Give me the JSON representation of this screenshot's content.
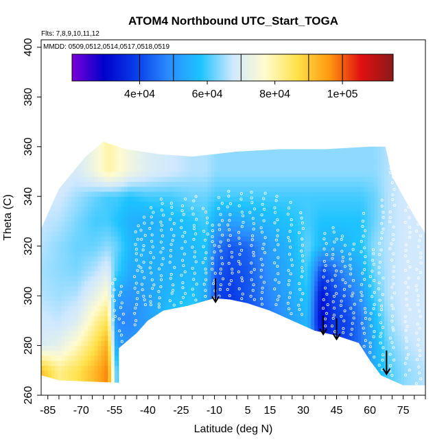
{
  "chart_data": {
    "type": "heatmap",
    "title": "ATOM4 Northbound UTC_Start_TOGA",
    "annotations": [
      "Flts: 7,8,9,10,11,12",
      "MMDD: 0509,0512,0514,0517,0518,0519"
    ],
    "xlabel": "Latitude (deg N)",
    "ylabel": "Theta (C)",
    "xlim": [
      -88,
      85
    ],
    "ylim": [
      260,
      403
    ],
    "x_ticks": [
      -85,
      -70,
      -55,
      -40,
      -25,
      -10,
      5,
      15,
      30,
      45,
      60,
      75
    ],
    "x_tick_labels": [
      "-85",
      "-70",
      "-55",
      "-40",
      "-25",
      "-10",
      "5",
      "15",
      "30",
      "45",
      "60",
      "75"
    ],
    "y_ticks": [
      260,
      280,
      300,
      320,
      340,
      360,
      380,
      400
    ],
    "y_tick_labels": [
      "260",
      "280",
      "300",
      "320",
      "340",
      "360",
      "380",
      "400"
    ],
    "colorbar": {
      "range": [
        20000,
        115000
      ],
      "ticks": [
        40000,
        60000,
        80000,
        100000
      ],
      "tick_labels": [
        "4e+04",
        "6e+04",
        "8e+04",
        "1e+05"
      ],
      "break_lines": [
        40000,
        50000,
        70000,
        90000,
        100000
      ],
      "stops": [
        "#7b00d8",
        "#0000cc",
        "#0a3ee8",
        "#2b8bff",
        "#1ec3ff",
        "#cfe8ff",
        "#fffbd0",
        "#ffe24a",
        "#ff9a10",
        "#e01010",
        "#8a1a1a"
      ]
    },
    "field_bounds": {
      "top": [
        [
          -88,
          327
        ],
        [
          -80,
          343
        ],
        [
          -68,
          356
        ],
        [
          -60,
          362
        ],
        [
          -50,
          359
        ],
        [
          -35,
          357
        ],
        [
          -20,
          356
        ],
        [
          0,
          358
        ],
        [
          20,
          359
        ],
        [
          40,
          359
        ],
        [
          60,
          360
        ],
        [
          67,
          360
        ],
        [
          70,
          348
        ],
        [
          80,
          332
        ],
        [
          85,
          325
        ]
      ],
      "bottom": [
        [
          -88,
          268
        ],
        [
          -80,
          266
        ],
        [
          -53,
          265
        ],
        [
          -53,
          279
        ],
        [
          -45,
          285
        ],
        [
          -40,
          290
        ],
        [
          -33,
          294
        ],
        [
          -22,
          296
        ],
        [
          -10,
          299
        ],
        [
          -3,
          298.5
        ],
        [
          5,
          297
        ],
        [
          15,
          294
        ],
        [
          25,
          290
        ],
        [
          35,
          286
        ],
        [
          45,
          284
        ],
        [
          55,
          281
        ],
        [
          60,
          274
        ],
        [
          65,
          268
        ],
        [
          70,
          266
        ],
        [
          75,
          264
        ],
        [
          85,
          264
        ]
      ]
    },
    "columns": [
      {
        "lat": -87,
        "values": [
          90000,
          70000,
          68000,
          66000,
          65000,
          66000,
          67000,
          68000,
          69000
        ]
      },
      {
        "lat": -80,
        "values": [
          82000,
          72000,
          67000,
          65000,
          64000,
          64000,
          66000,
          68000,
          70000
        ]
      },
      {
        "lat": -72,
        "values": [
          86000,
          78000,
          70000,
          66000,
          63000,
          62000,
          63000,
          65000,
          69000
        ]
      },
      {
        "lat": -64,
        "values": [
          92000,
          86000,
          80000,
          72000,
          66000,
          62000,
          60000,
          62000,
          74000
        ]
      },
      {
        "lat": -58,
        "values": [
          98000,
          94000,
          86000,
          78000,
          70000,
          64000,
          60000,
          60000,
          80000
        ]
      },
      {
        "lat": -54,
        "values": [
          60000,
          52000,
          48000,
          52000,
          60000,
          62000,
          58000,
          60000,
          78000
        ]
      },
      {
        "lat": -48,
        "values": [
          56000,
          50000,
          48000,
          50000,
          54000,
          56000,
          55000,
          58000,
          74000
        ]
      },
      {
        "lat": -40,
        "values": [
          58000,
          54000,
          52000,
          52000,
          54000,
          55000,
          54000,
          60000,
          70000
        ]
      },
      {
        "lat": -30,
        "values": [
          62000,
          60000,
          58000,
          56000,
          55000,
          55000,
          56000,
          60000,
          68000
        ]
      },
      {
        "lat": -20,
        "values": [
          64000,
          62000,
          60000,
          58000,
          56000,
          56000,
          58000,
          62000,
          66000
        ]
      },
      {
        "lat": -14,
        "values": [
          58000,
          56000,
          54000,
          54000,
          56000,
          58000,
          60000,
          62000,
          66000
        ]
      },
      {
        "lat": -9,
        "values": [
          40000,
          38000,
          40000,
          40000,
          42000,
          46000,
          54000,
          60000,
          64000
        ]
      },
      {
        "lat": -3,
        "values": [
          40000,
          38000,
          36000,
          38000,
          40000,
          42000,
          52000,
          60000,
          64000
        ]
      },
      {
        "lat": 5,
        "values": [
          42000,
          40000,
          40000,
          42000,
          42000,
          44000,
          54000,
          60000,
          64000
        ]
      },
      {
        "lat": 15,
        "values": [
          48000,
          46000,
          46000,
          48000,
          50000,
          52000,
          56000,
          60000,
          64000
        ]
      },
      {
        "lat": 25,
        "values": [
          54000,
          52000,
          52000,
          54000,
          55000,
          56000,
          58000,
          60000,
          64000
        ]
      },
      {
        "lat": 32,
        "values": [
          56000,
          56000,
          56000,
          58000,
          60000,
          62000,
          60000,
          60000,
          64000
        ]
      },
      {
        "lat": 38,
        "values": [
          48000,
          36000,
          30000,
          32000,
          40000,
          56000,
          58000,
          60000,
          64000
        ]
      },
      {
        "lat": 44,
        "values": [
          40000,
          38000,
          38000,
          40000,
          44000,
          54000,
          58000,
          60000,
          64000
        ]
      },
      {
        "lat": 50,
        "values": [
          42000,
          40000,
          40000,
          44000,
          50000,
          56000,
          58000,
          60000,
          64000
        ]
      },
      {
        "lat": 56,
        "values": [
          46000,
          46000,
          46000,
          50000,
          54000,
          58000,
          58000,
          60000,
          64000
        ]
      },
      {
        "lat": 62,
        "values": [
          54000,
          54000,
          56000,
          60000,
          62000,
          64000,
          62000,
          62000,
          64000
        ]
      },
      {
        "lat": 68,
        "values": [
          60000,
          62000,
          64000,
          66000,
          66000,
          66000,
          66000,
          66000,
          66000
        ]
      },
      {
        "lat": 76,
        "values": [
          64000,
          66000,
          68000,
          68000,
          68000,
          68000,
          68000,
          68000,
          68000
        ]
      },
      {
        "lat": 84,
        "values": [
          66000,
          68000,
          68000,
          68000,
          68000,
          68000,
          68000,
          68000,
          68000
        ]
      }
    ],
    "theta_levels": [
      270,
      280,
      290,
      300,
      310,
      320,
      330,
      340,
      350
    ],
    "flight_tracks": [
      {
        "lat": -55,
        "theta": [
          [
            298,
            307
          ],
          [
            290,
            296
          ]
        ]
      },
      {
        "lat": -52,
        "theta": [
          [
            282,
            305
          ]
        ]
      },
      {
        "lat": -45,
        "theta": [
          [
            288,
            328
          ]
        ]
      },
      {
        "lat": -42,
        "theta": [
          [
            296,
            332
          ]
        ]
      },
      {
        "lat": -38,
        "theta": [
          [
            296,
            337
          ]
        ]
      },
      {
        "lat": -34,
        "theta": [
          [
            295,
            339
          ]
        ]
      },
      {
        "lat": -29,
        "theta": [
          [
            296,
            338
          ]
        ]
      },
      {
        "lat": -24,
        "theta": [
          [
            297,
            340
          ]
        ]
      },
      {
        "lat": -19,
        "theta": [
          [
            298,
            341
          ]
        ]
      },
      {
        "lat": -14,
        "theta": [
          [
            298,
            337
          ]
        ]
      },
      {
        "lat": -10,
        "theta": [
          [
            300,
            330
          ]
        ]
      },
      {
        "lat": -7,
        "theta": [
          [
            300,
            340
          ]
        ]
      },
      {
        "lat": -3,
        "theta": [
          [
            300,
            343
          ]
        ]
      },
      {
        "lat": 2,
        "theta": [
          [
            299,
            342
          ]
        ]
      },
      {
        "lat": 7,
        "theta": [
          [
            298,
            343
          ]
        ]
      },
      {
        "lat": 12,
        "theta": [
          [
            297,
            342
          ]
        ]
      },
      {
        "lat": 18,
        "theta": [
          [
            296,
            341
          ]
        ]
      },
      {
        "lat": 24,
        "theta": [
          [
            293,
            338
          ]
        ]
      },
      {
        "lat": 29,
        "theta": [
          [
            292,
            334
          ]
        ]
      },
      {
        "lat": 40,
        "theta": [
          [
            288,
            326
          ]
        ]
      },
      {
        "lat": 44,
        "theta": [
          [
            286,
            329
          ]
        ]
      },
      {
        "lat": 48,
        "theta": [
          [
            285,
            326
          ]
        ]
      },
      {
        "lat": 52,
        "theta": [
          [
            284,
            323
          ]
        ]
      },
      {
        "lat": 57,
        "theta": [
          [
            280,
            334
          ]
        ]
      },
      {
        "lat": 61,
        "theta": [
          [
            275,
            320
          ]
        ]
      },
      {
        "lat": 65,
        "theta": [
          [
            270,
            340
          ]
        ]
      },
      {
        "lat": 70,
        "theta": [
          [
            268,
            358
          ]
        ]
      },
      {
        "lat": 77,
        "theta": [
          [
            268,
            345
          ]
        ]
      },
      {
        "lat": 82,
        "theta": [
          [
            265,
            340
          ]
        ]
      }
    ],
    "arrows": [
      {
        "lat": -9.5,
        "theta_top": 307,
        "theta_tip": 297.5
      },
      {
        "lat": 39,
        "theta_top": 292,
        "theta_tip": 284.5
      },
      {
        "lat": 45,
        "theta_top": 291,
        "theta_tip": 282.5
      },
      {
        "lat": 67.5,
        "theta_top": 278,
        "theta_tip": 268.5
      }
    ],
    "colors": {
      "markers": "#ffffff",
      "arrows": "#000000",
      "axes": "#000000",
      "background": "#ffffff"
    }
  }
}
